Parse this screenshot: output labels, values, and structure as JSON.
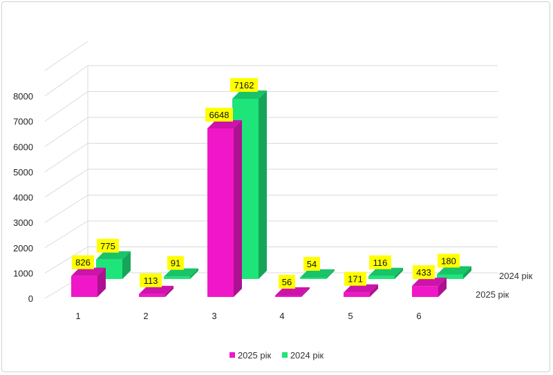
{
  "chart_data": {
    "type": "bar",
    "title": "",
    "xlabel": "",
    "ylabel": "",
    "categories": [
      "1",
      "2",
      "3",
      "4",
      "5",
      "6"
    ],
    "series": [
      {
        "name": "2025 рік",
        "values": [
          826,
          113,
          6648,
          56,
          171,
          433
        ],
        "color": "#f017c8"
      },
      {
        "name": "2024 рік",
        "values": [
          775,
          91,
          7162,
          54,
          116,
          180
        ],
        "color": "#1de57a"
      }
    ],
    "yticks": [
      0,
      1000,
      2000,
      3000,
      4000,
      5000,
      6000,
      7000,
      8000
    ],
    "ylim": [
      0,
      8000
    ],
    "grid": true,
    "legend": "bottom",
    "data_label_color": "#ffff00"
  }
}
